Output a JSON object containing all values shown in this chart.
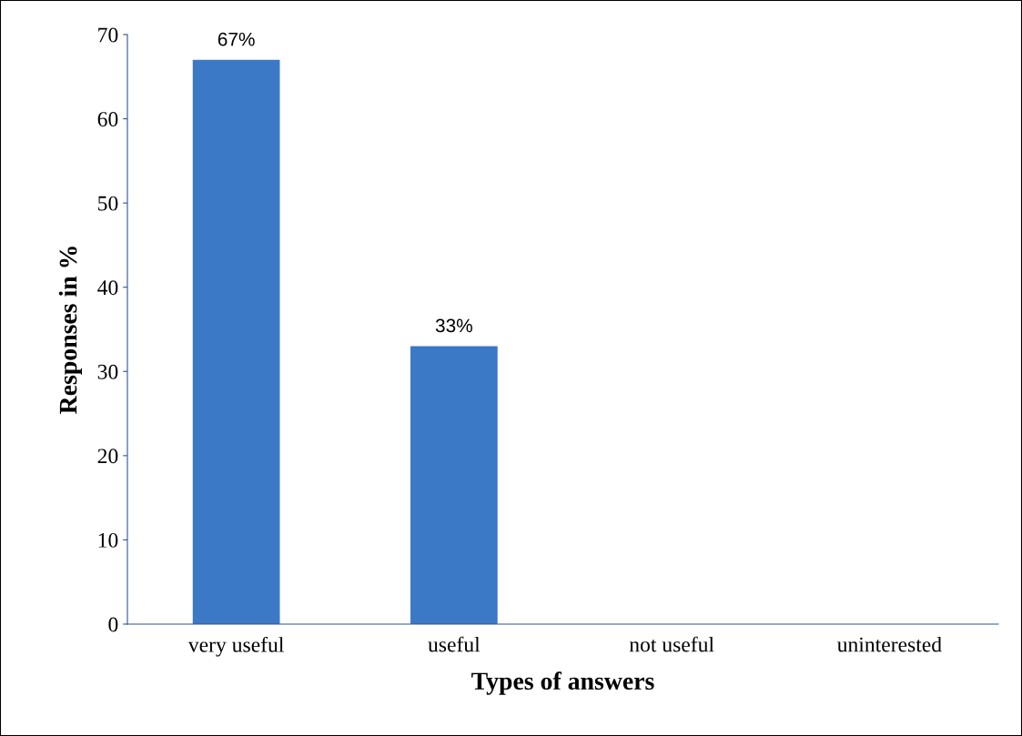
{
  "chart_data": {
    "type": "bar",
    "xlabel": "Types of answers",
    "ylabel": "Responses in %",
    "categories": [
      "very useful",
      "useful",
      "not useful",
      "uninterested"
    ],
    "values": [
      67,
      33,
      0,
      0
    ],
    "value_labels": [
      "67%",
      "33%",
      null,
      null
    ],
    "color": "#3b78c6",
    "ylim": [
      0,
      70
    ],
    "yticks": [
      0,
      10,
      20,
      30,
      40,
      50,
      60,
      70
    ],
    "grid": false,
    "legend": false
  }
}
